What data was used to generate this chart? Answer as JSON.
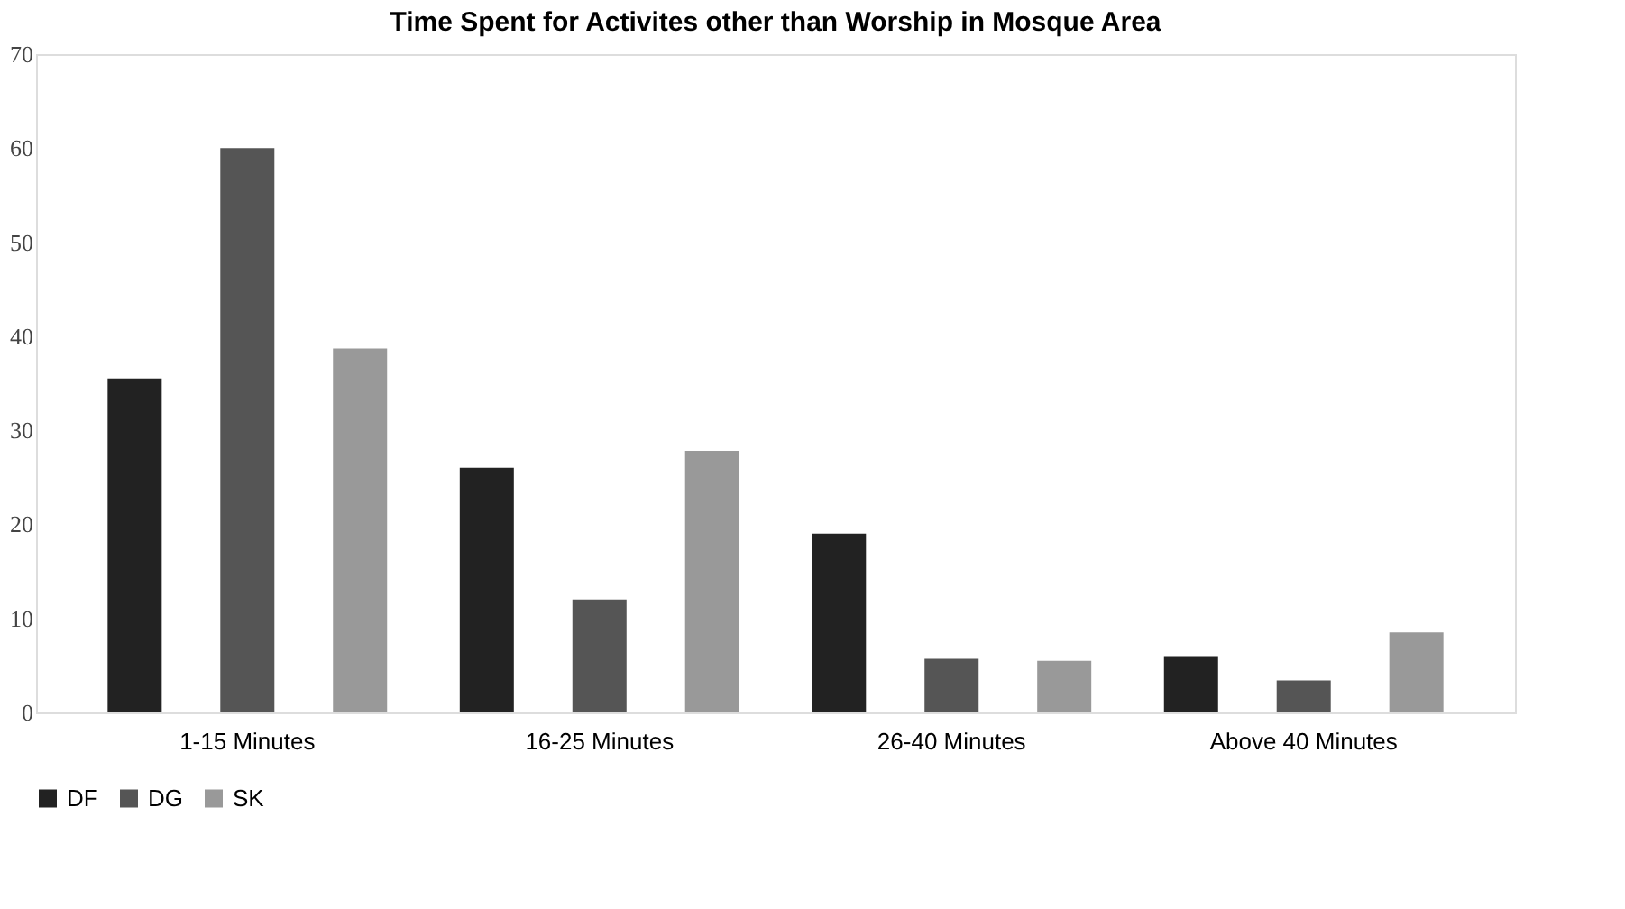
{
  "chart_data": {
    "type": "bar",
    "title": "Time Spent for Activites other than Worship in Mosque Area",
    "categories": [
      "1-15 Minutes",
      "16-25 Minutes",
      "26-40 Minutes",
      "Above 40 Minutes"
    ],
    "series": [
      {
        "name": "DF",
        "color": "#222222",
        "values": [
          35.5,
          26,
          19,
          6
        ]
      },
      {
        "name": "DG",
        "color": "#555555",
        "values": [
          60,
          12,
          5.7,
          3.4
        ]
      },
      {
        "name": "SK",
        "color": "#999999",
        "values": [
          38.7,
          27.8,
          5.5,
          8.5
        ]
      }
    ],
    "ylim": [
      0,
      70
    ],
    "yticks": [
      0,
      10,
      20,
      30,
      40,
      50,
      60,
      70
    ],
    "grid": false,
    "legend": "bottom"
  }
}
